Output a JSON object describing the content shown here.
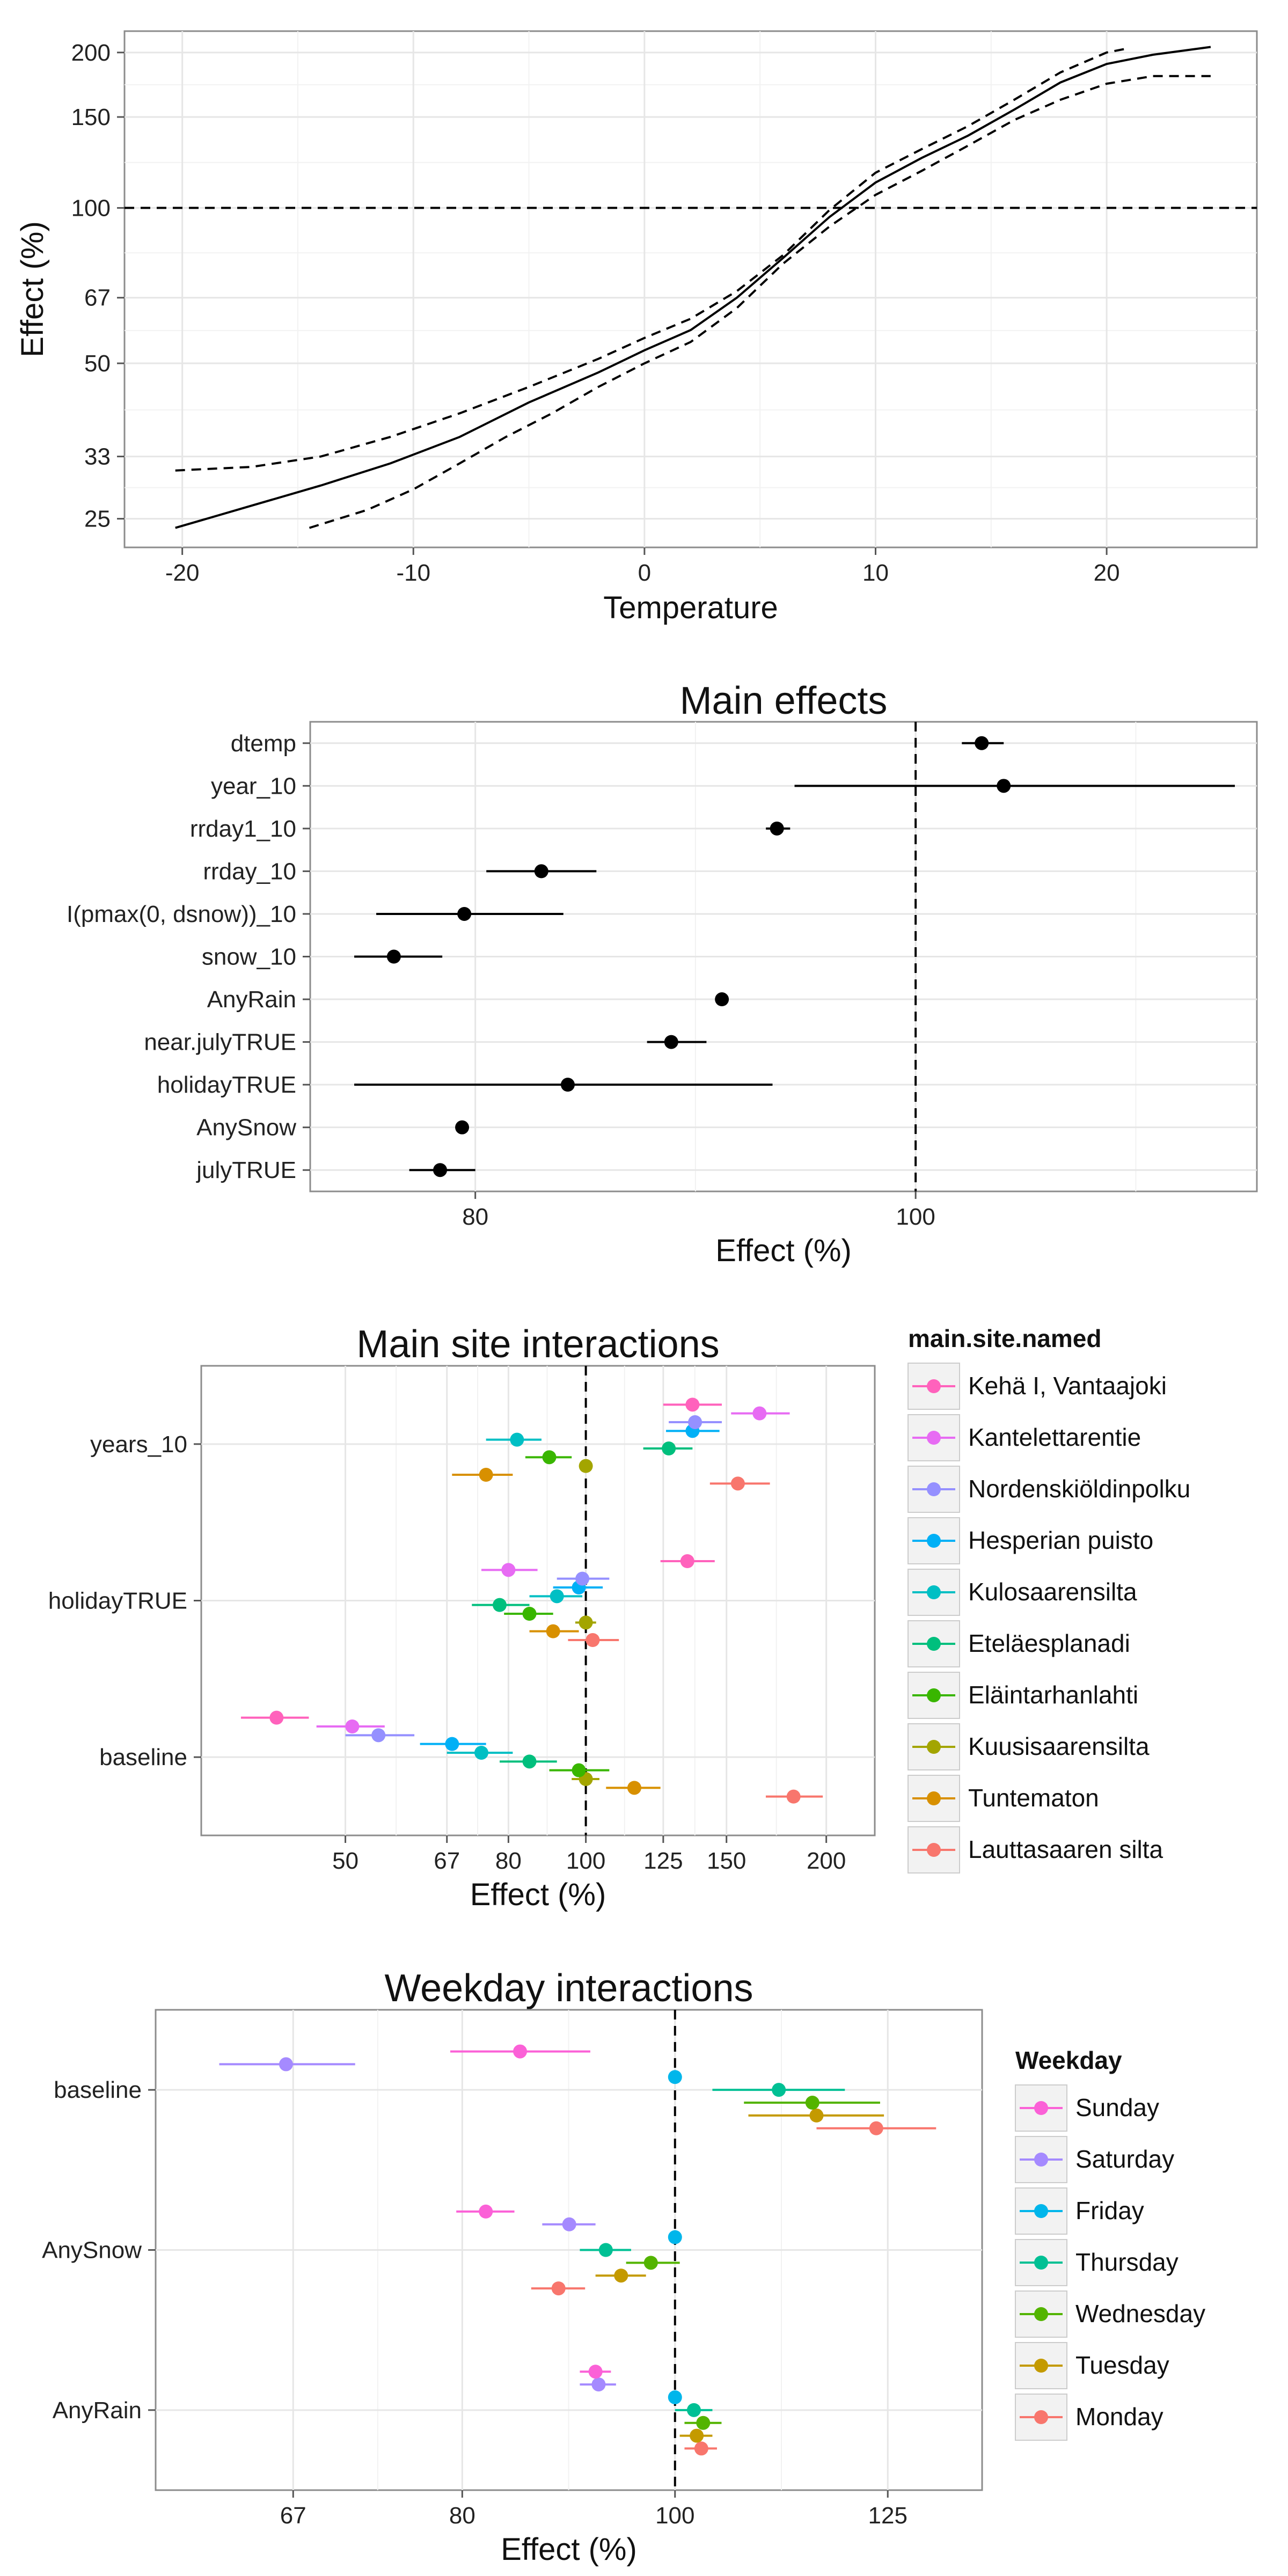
{
  "chart_data": [
    {
      "type": "line",
      "xlabel": "Temperature",
      "ylabel": "Effect (%)",
      "xlim": [
        -22.5,
        26.5
      ],
      "ylim": [
        22,
        220
      ],
      "y_scale": "log",
      "x_ticks": [
        "-20",
        "-10",
        "0",
        "10",
        "20"
      ],
      "x_tick_values": [
        -20,
        -10,
        0,
        10,
        20
      ],
      "y_ticks": [
        "25",
        "33",
        "50",
        "67",
        "100",
        "150",
        "200"
      ],
      "y_tick_values": [
        25,
        33,
        50,
        67,
        100,
        150,
        200
      ],
      "reference_line": 100,
      "grid": true,
      "series": [
        {
          "style": "solid",
          "x": [
            -20.3,
            -17,
            -14,
            -11,
            -8,
            -5,
            -2,
            0,
            2,
            4,
            6,
            8,
            10,
            12,
            14,
            16,
            18,
            20,
            22,
            24.5
          ],
          "y": [
            24,
            26.5,
            29,
            32,
            36,
            42,
            48,
            53,
            58,
            67,
            80,
            96,
            112,
            125,
            138,
            155,
            175,
            190,
            198,
            205
          ]
        },
        {
          "style": "dashed",
          "x": [
            -20.3,
            -17,
            -14,
            -11,
            -8,
            -5,
            -2,
            0,
            2,
            4,
            6,
            8,
            10,
            12,
            14,
            16,
            18,
            20,
            21
          ],
          "y": [
            31,
            31.5,
            33,
            36,
            40,
            45,
            51,
            56,
            61,
            69,
            81,
            99,
            117,
            130,
            144,
            162,
            183,
            200,
            204
          ]
        },
        {
          "style": "dashed",
          "x": [
            -14.5,
            -12,
            -10,
            -8,
            -6,
            -4,
            -2,
            0,
            2,
            4,
            6,
            8,
            10,
            12,
            14,
            16,
            18,
            20,
            22,
            24.5
          ],
          "y": [
            24,
            26,
            28.5,
            32,
            36,
            40,
            45,
            50,
            55,
            64,
            78,
            92,
            106,
            118,
            132,
            148,
            162,
            174,
            180,
            180
          ]
        }
      ]
    },
    {
      "type": "scatter",
      "title": "Main effects",
      "xlabel": "Effect (%)",
      "xlim": [
        72.5,
        115.5
      ],
      "x_ticks": [
        "80",
        "100"
      ],
      "x_tick_values": [
        80,
        100
      ],
      "reference_line": 100,
      "grid": true,
      "categories": [
        "dtemp",
        "year_10",
        "rrday1_10",
        "rrday_10",
        "I(pmax(0, dsnow))_10",
        "snow_10",
        "AnyRain",
        "near.julyTRUE",
        "holidayTRUE",
        "AnySnow",
        "julyTRUE"
      ],
      "values": [
        103,
        104,
        93.7,
        83,
        79.5,
        76.3,
        91.2,
        88.9,
        84.2,
        79.4,
        78.4
      ],
      "lower": [
        102.1,
        94.5,
        93.2,
        80.5,
        75.5,
        74.5,
        91.2,
        87.8,
        74.5,
        79.4,
        77
      ],
      "upper": [
        104,
        114.5,
        94.3,
        85.5,
        84,
        78.5,
        91.2,
        90.5,
        93.5,
        79.4,
        80
      ]
    },
    {
      "type": "scatter",
      "title": "Main site interactions",
      "xlabel": "Effect (%)",
      "xlim": [
        33,
        230
      ],
      "x_scale": "log",
      "x_ticks": [
        "50",
        "67",
        "80",
        "100",
        "125",
        "150",
        "200"
      ],
      "x_tick_values": [
        50,
        67,
        80,
        100,
        125,
        150,
        200
      ],
      "reference_line": 100,
      "grid": true,
      "legend_title": "main.site.named",
      "legend_position": "right",
      "categories": [
        "years_10",
        "holidayTRUE",
        "baseline"
      ],
      "series": [
        {
          "name": "Lauttasaaren silta",
          "color": "#F8766D",
          "points": [
            {
              "cat": "years_10",
              "value": 155,
              "lower": 143,
              "upper": 170
            },
            {
              "cat": "holidayTRUE",
              "value": 102,
              "lower": 95,
              "upper": 110
            },
            {
              "cat": "baseline",
              "value": 182,
              "lower": 168,
              "upper": 198
            }
          ]
        },
        {
          "name": "Tuntematon",
          "color": "#D89000",
          "points": [
            {
              "cat": "years_10",
              "value": 75,
              "lower": 68,
              "upper": 81
            },
            {
              "cat": "holidayTRUE",
              "value": 91,
              "lower": 85,
              "upper": 98
            },
            {
              "cat": "baseline",
              "value": 115,
              "lower": 106,
              "upper": 124
            }
          ]
        },
        {
          "name": "Kuusisaarensilta",
          "color": "#A3A500",
          "points": [
            {
              "cat": "years_10",
              "value": 100,
              "lower": 100,
              "upper": 100
            },
            {
              "cat": "holidayTRUE",
              "value": 100,
              "lower": 97,
              "upper": 103
            },
            {
              "cat": "baseline",
              "value": 100,
              "lower": 96,
              "upper": 104
            }
          ]
        },
        {
          "name": "Eläintarhanlahti",
          "color": "#39B600",
          "points": [
            {
              "cat": "years_10",
              "value": 90,
              "lower": 84,
              "upper": 96
            },
            {
              "cat": "holidayTRUE",
              "value": 85,
              "lower": 79,
              "upper": 91
            },
            {
              "cat": "baseline",
              "value": 98,
              "lower": 90,
              "upper": 107
            }
          ]
        },
        {
          "name": "Eteläesplanadi",
          "color": "#00BF7D",
          "points": [
            {
              "cat": "years_10",
              "value": 127,
              "lower": 118,
              "upper": 136
            },
            {
              "cat": "holidayTRUE",
              "value": 78,
              "lower": 72,
              "upper": 85
            },
            {
              "cat": "baseline",
              "value": 85,
              "lower": 78,
              "upper": 92
            }
          ]
        },
        {
          "name": "Kulosaarensilta",
          "color": "#00BFC4",
          "points": [
            {
              "cat": "years_10",
              "value": 82,
              "lower": 75,
              "upper": 88
            },
            {
              "cat": "holidayTRUE",
              "value": 92,
              "lower": 85,
              "upper": 99
            },
            {
              "cat": "baseline",
              "value": 74,
              "lower": 67,
              "upper": 81
            }
          ]
        },
        {
          "name": "Hesperian puisto",
          "color": "#00B0F6",
          "points": [
            {
              "cat": "years_10",
              "value": 136,
              "lower": 126,
              "upper": 147
            },
            {
              "cat": "holidayTRUE",
              "value": 98,
              "lower": 91,
              "upper": 105
            },
            {
              "cat": "baseline",
              "value": 68,
              "lower": 62,
              "upper": 75
            }
          ]
        },
        {
          "name": "Nordenskiöldinpolku",
          "color": "#9590FF",
          "points": [
            {
              "cat": "years_10",
              "value": 137,
              "lower": 127,
              "upper": 148
            },
            {
              "cat": "holidayTRUE",
              "value": 99,
              "lower": 92,
              "upper": 107
            },
            {
              "cat": "baseline",
              "value": 55,
              "lower": 50,
              "upper": 61
            }
          ]
        },
        {
          "name": "Kantelettarentie",
          "color": "#E76BF3",
          "points": [
            {
              "cat": "years_10",
              "value": 165,
              "lower": 152,
              "upper": 180
            },
            {
              "cat": "holidayTRUE",
              "value": 80,
              "lower": 74,
              "upper": 87
            },
            {
              "cat": "baseline",
              "value": 51,
              "lower": 46,
              "upper": 56
            }
          ]
        },
        {
          "name": "Kehä I, Vantaajoki",
          "color": "#FF62BC",
          "points": [
            {
              "cat": "years_10",
              "value": 136,
              "lower": 125,
              "upper": 148
            },
            {
              "cat": "holidayTRUE",
              "value": 134,
              "lower": 124,
              "upper": 145
            },
            {
              "cat": "baseline",
              "value": 41,
              "lower": 37,
              "upper": 45
            }
          ]
        }
      ]
    },
    {
      "type": "scatter",
      "title": "Weekday interactions",
      "xlabel": "Effect (%)",
      "xlim": [
        58,
        138
      ],
      "x_scale": "log",
      "x_ticks": [
        "67",
        "80",
        "100",
        "125"
      ],
      "x_tick_values": [
        67,
        80,
        100,
        125
      ],
      "reference_line": 100,
      "grid": true,
      "legend_title": "Weekday",
      "legend_position": "right",
      "categories": [
        "baseline",
        "AnySnow",
        "AnyRain"
      ],
      "series": [
        {
          "name": "Monday",
          "color": "#F8766D",
          "points": [
            {
              "cat": "baseline",
              "value": 123.5,
              "lower": 116,
              "upper": 131.5
            },
            {
              "cat": "AnySnow",
              "value": 88.5,
              "lower": 86,
              "upper": 91
            },
            {
              "cat": "AnyRain",
              "value": 102.8,
              "lower": 101,
              "upper": 104.5
            }
          ]
        },
        {
          "name": "Tuesday",
          "color": "#C49A00",
          "points": [
            {
              "cat": "baseline",
              "value": 116,
              "lower": 108,
              "upper": 124.5
            },
            {
              "cat": "AnySnow",
              "value": 94.5,
              "lower": 92,
              "upper": 97
            },
            {
              "cat": "AnyRain",
              "value": 102.3,
              "lower": 100.5,
              "upper": 104
            }
          ]
        },
        {
          "name": "Wednesday",
          "color": "#53B400",
          "points": [
            {
              "cat": "baseline",
              "value": 115.5,
              "lower": 107.5,
              "upper": 124
            },
            {
              "cat": "AnySnow",
              "value": 97.5,
              "lower": 95,
              "upper": 100.5
            },
            {
              "cat": "AnyRain",
              "value": 103,
              "lower": 101,
              "upper": 105
            }
          ]
        },
        {
          "name": "Thursday",
          "color": "#00C094",
          "points": [
            {
              "cat": "baseline",
              "value": 111.5,
              "lower": 104,
              "upper": 119.5
            },
            {
              "cat": "AnySnow",
              "value": 93,
              "lower": 90.5,
              "upper": 95.5
            },
            {
              "cat": "AnyRain",
              "value": 102,
              "lower": 100,
              "upper": 104
            }
          ]
        },
        {
          "name": "Friday",
          "color": "#00B6EB",
          "points": [
            {
              "cat": "baseline",
              "value": 100,
              "lower": 100,
              "upper": 100
            },
            {
              "cat": "AnySnow",
              "value": 100,
              "lower": 100,
              "upper": 100
            },
            {
              "cat": "AnyRain",
              "value": 100,
              "lower": 100,
              "upper": 100
            }
          ]
        },
        {
          "name": "Saturday",
          "color": "#A58AFF",
          "points": [
            {
              "cat": "baseline",
              "value": 66.5,
              "lower": 62,
              "upper": 71.5
            },
            {
              "cat": "AnySnow",
              "value": 89.5,
              "lower": 87,
              "upper": 92
            },
            {
              "cat": "AnyRain",
              "value": 92.3,
              "lower": 90.5,
              "upper": 94
            }
          ]
        },
        {
          "name": "Sunday",
          "color": "#FB61D7",
          "points": [
            {
              "cat": "baseline",
              "value": 85,
              "lower": 79,
              "upper": 91.5
            },
            {
              "cat": "AnySnow",
              "value": 82,
              "lower": 79.5,
              "upper": 84.5
            },
            {
              "cat": "AnyRain",
              "value": 92,
              "lower": 90.5,
              "upper": 93.5
            }
          ]
        }
      ]
    }
  ]
}
